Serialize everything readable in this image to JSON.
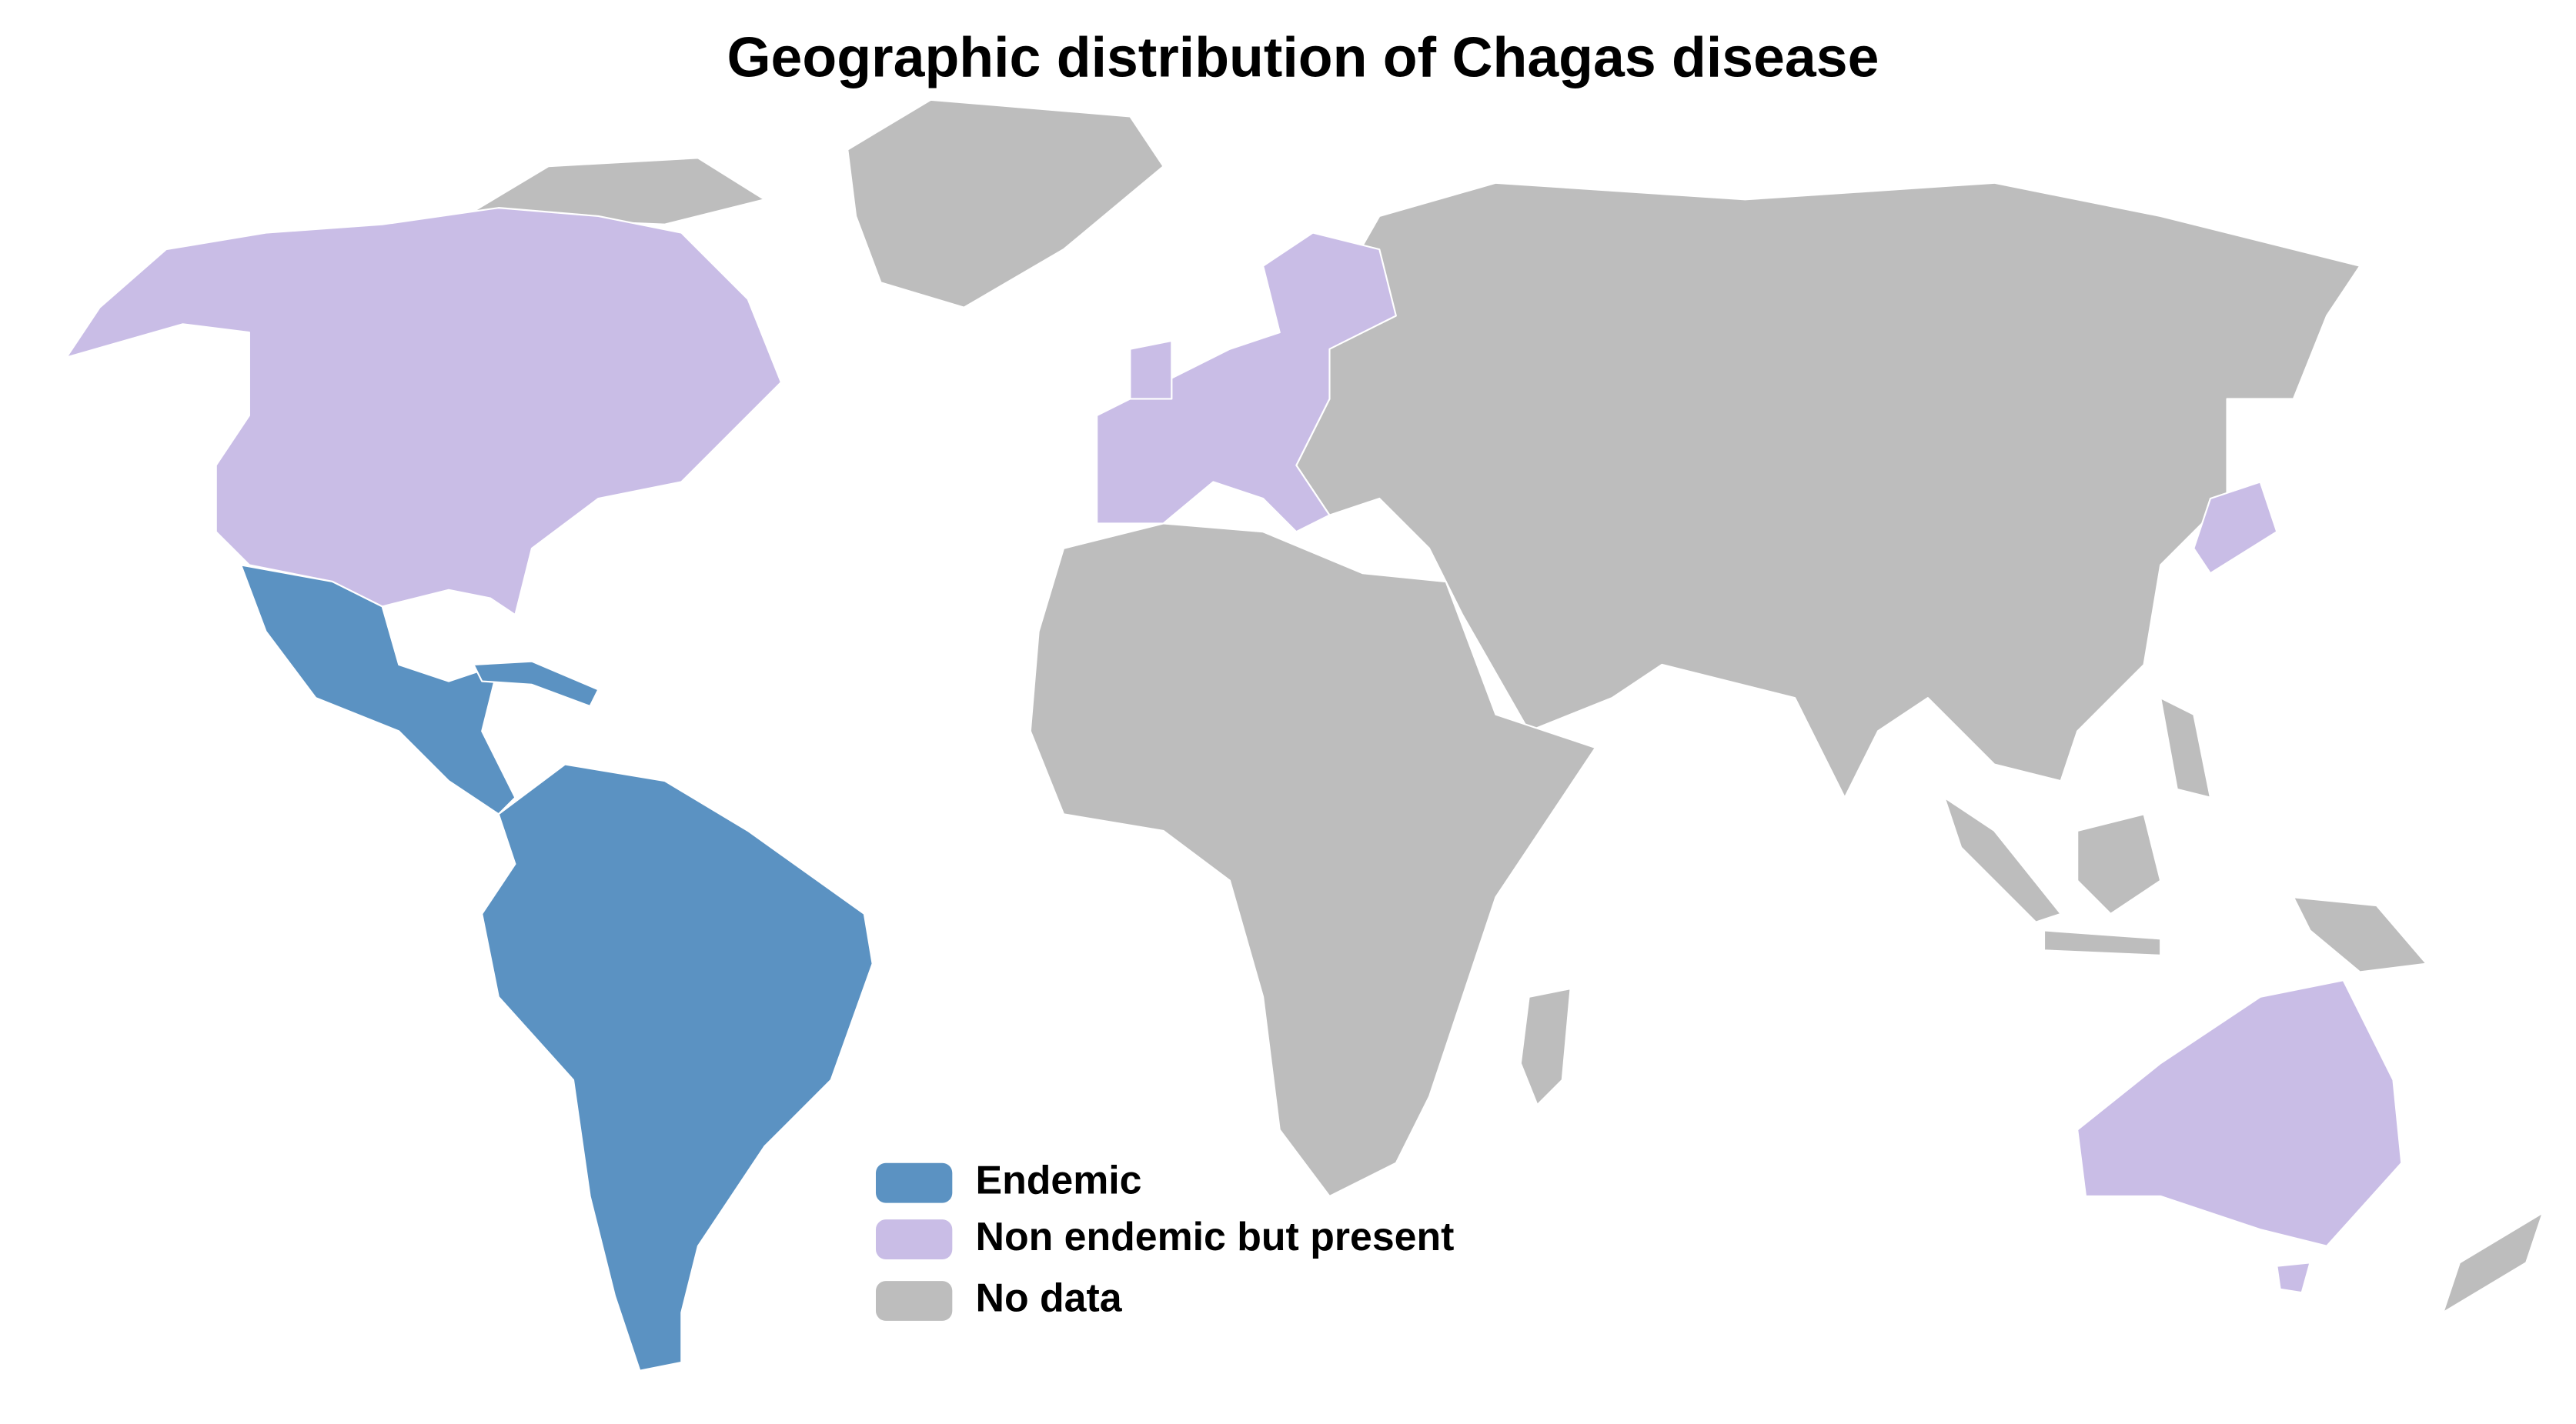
{
  "title": "Geographic distribution of Chagas disease",
  "legend": [
    {
      "label": "Endemic",
      "color": "#5b92c2"
    },
    {
      "label": "Non endemic but present",
      "color": "#c9bde6"
    },
    {
      "label": "No data",
      "color": "#bdbdbd"
    }
  ]
}
